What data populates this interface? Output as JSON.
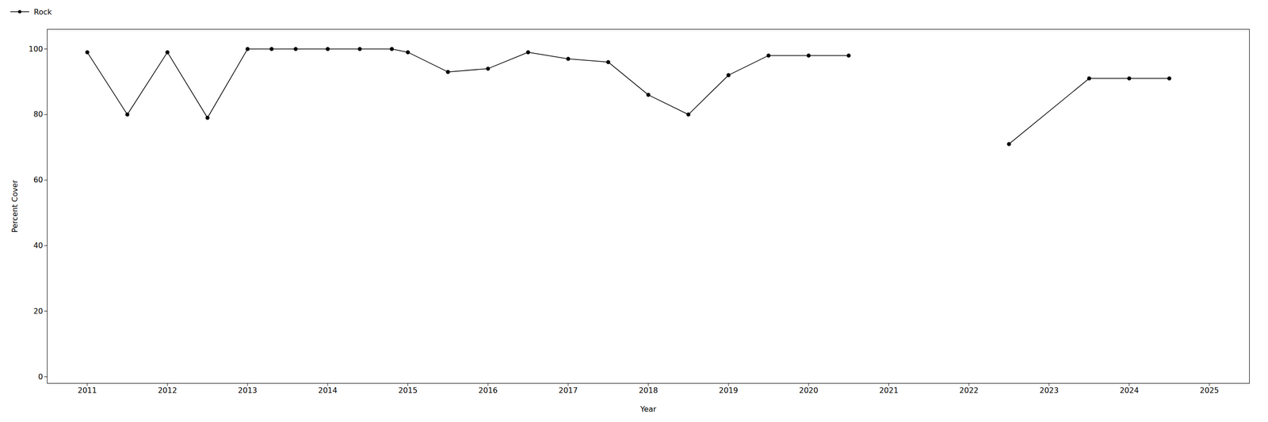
{
  "chart_data": {
    "type": "line",
    "xlabel": "Year",
    "ylabel": "Percent Cover",
    "x": [
      2011,
      2011.5,
      2012,
      2012.5,
      2013,
      2013.3,
      2013.6,
      2014,
      2014.4,
      2014.8,
      2015,
      2015.5,
      2016,
      2016.5,
      2017,
      2017.5,
      2018,
      2018.5,
      2019,
      2019.5,
      2020,
      2020.5,
      null,
      2022.5,
      2023.5,
      2024,
      2024.5
    ],
    "series": [
      {
        "name": "Rock",
        "color": "#000000",
        "marker": "circle",
        "line_style": "solid",
        "values": [
          99,
          80,
          99,
          79,
          100,
          100,
          100,
          100,
          100,
          100,
          99,
          93,
          94,
          99,
          97,
          96,
          86,
          80,
          92,
          98,
          98,
          98,
          null,
          71,
          91,
          91,
          91
        ]
      }
    ],
    "xlim": [
      2010.5,
      2025.5
    ],
    "ylim": [
      -2,
      106
    ],
    "xticks": [
      2011,
      2012,
      2013,
      2014,
      2015,
      2016,
      2017,
      2018,
      2019,
      2020,
      2021,
      2022,
      2023,
      2024,
      2025
    ],
    "yticks": [
      0,
      20,
      40,
      60,
      80,
      100
    ],
    "grid": false,
    "legend": "top-left"
  }
}
